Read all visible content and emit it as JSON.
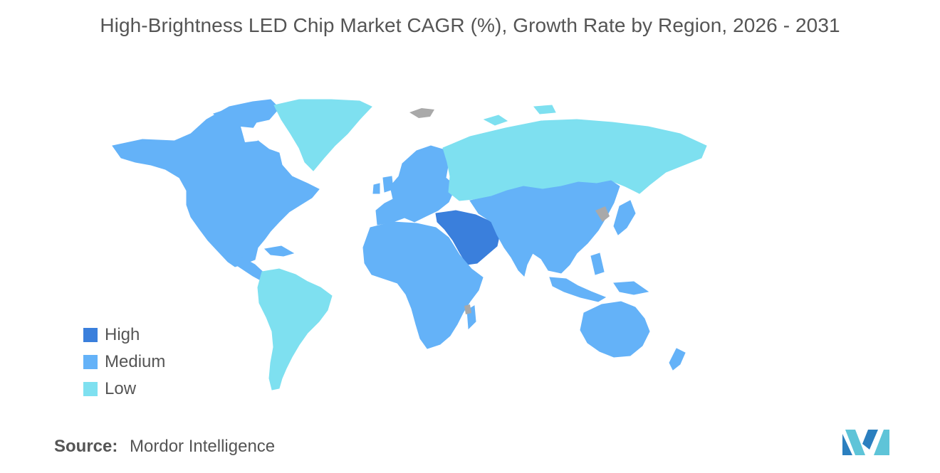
{
  "title": "High-Brightness LED Chip Market CAGR (%), Growth Rate by Region, 2026 - 2031",
  "legend": [
    {
      "label": "High",
      "color": "#3a7fdc"
    },
    {
      "label": "Medium",
      "color": "#64b2f8"
    },
    {
      "label": "Low",
      "color": "#7ee0f0"
    }
  ],
  "no_data_color": "#a9a9a9",
  "regions": [
    {
      "name": "North America",
      "level": "Medium"
    },
    {
      "name": "South America",
      "level": "Low"
    },
    {
      "name": "Greenland",
      "level": "Low"
    },
    {
      "name": "Europe",
      "level": "Medium"
    },
    {
      "name": "Russia",
      "level": "Low"
    },
    {
      "name": "Middle East",
      "level": "High"
    },
    {
      "name": "Africa",
      "level": "Medium"
    },
    {
      "name": "Asia",
      "level": "Medium"
    },
    {
      "name": "Australia and New Zealand",
      "level": "Medium"
    }
  ],
  "source": {
    "label": "Source:",
    "value": "Mordor Intelligence"
  }
}
